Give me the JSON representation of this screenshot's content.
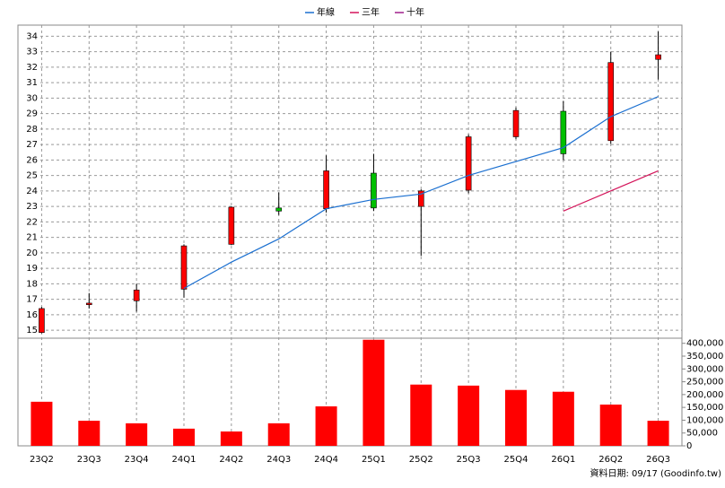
{
  "chart_data": [
    {
      "type": "candlestick",
      "categories": [
        "23Q2",
        "23Q3",
        "23Q4",
        "24Q1",
        "24Q2",
        "24Q3",
        "24Q4",
        "25Q1",
        "25Q2",
        "25Q3",
        "25Q4",
        "26Q1",
        "26Q2",
        "26Q3"
      ],
      "open": [
        14.85,
        16.65,
        16.9,
        17.65,
        20.55,
        22.9,
        22.85,
        25.15,
        23.0,
        24.05,
        27.5,
        29.15,
        27.25,
        32.5
      ],
      "high": [
        16.5,
        17.4,
        18.0,
        20.55,
        23.0,
        23.9,
        26.3,
        26.4,
        24.1,
        27.65,
        29.4,
        29.8,
        33.0,
        34.3
      ],
      "low": [
        14.8,
        16.4,
        16.2,
        17.1,
        20.5,
        22.45,
        22.6,
        22.7,
        19.8,
        23.85,
        27.35,
        26.0,
        27.05,
        31.2
      ],
      "close": [
        16.4,
        16.75,
        17.6,
        20.45,
        22.95,
        22.7,
        25.3,
        22.9,
        24.0,
        27.5,
        29.2,
        26.4,
        32.3,
        32.8
      ],
      "up_color": "#ff0000",
      "down_color": "#00c000",
      "series": [
        {
          "name": "年線",
          "color": "#1a6fd0",
          "values": [
            null,
            null,
            null,
            17.7,
            19.4,
            20.9,
            22.85,
            23.45,
            23.8,
            25.0,
            25.9,
            26.8,
            28.8,
            30.1
          ]
        },
        {
          "name": "三年",
          "color": "#d4145a",
          "values": [
            null,
            null,
            null,
            null,
            null,
            null,
            null,
            null,
            null,
            null,
            null,
            22.7,
            24.0,
            25.3
          ]
        },
        {
          "name": "十年",
          "color": "#a0208c",
          "values": [
            null,
            null,
            null,
            null,
            null,
            null,
            null,
            null,
            null,
            null,
            null,
            null,
            null,
            null
          ]
        }
      ],
      "ylim": [
        14.6,
        34.6
      ],
      "yticks": [
        15,
        16,
        17,
        18,
        19,
        20,
        21,
        22,
        23,
        24,
        25,
        26,
        27,
        28,
        29,
        30,
        31,
        32,
        33,
        34
      ],
      "grid": true,
      "legend": "top"
    },
    {
      "type": "bar",
      "color": "#ff0000",
      "values": [
        172000,
        98000,
        88000,
        67000,
        56000,
        88000,
        154000,
        414000,
        239000,
        235000,
        218000,
        211000,
        161000,
        98000
      ],
      "ylim": [
        0,
        420000
      ],
      "yticks": [
        0,
        {
          "value": 50000,
          "label": "50,000"
        },
        {
          "value": 100000,
          "label": "100,000"
        },
        {
          "value": 150000,
          "label": "150,000"
        },
        {
          "value": 200000,
          "label": "200,000"
        },
        {
          "value": 250000,
          "label": "250,000"
        },
        {
          "value": 300000,
          "label": "300,000"
        },
        {
          "value": 350000,
          "label": "350,000"
        },
        {
          "value": 400000,
          "label": "400,000"
        }
      ]
    }
  ],
  "footer": "資料日期: 09/17  (Goodinfo.tw)"
}
